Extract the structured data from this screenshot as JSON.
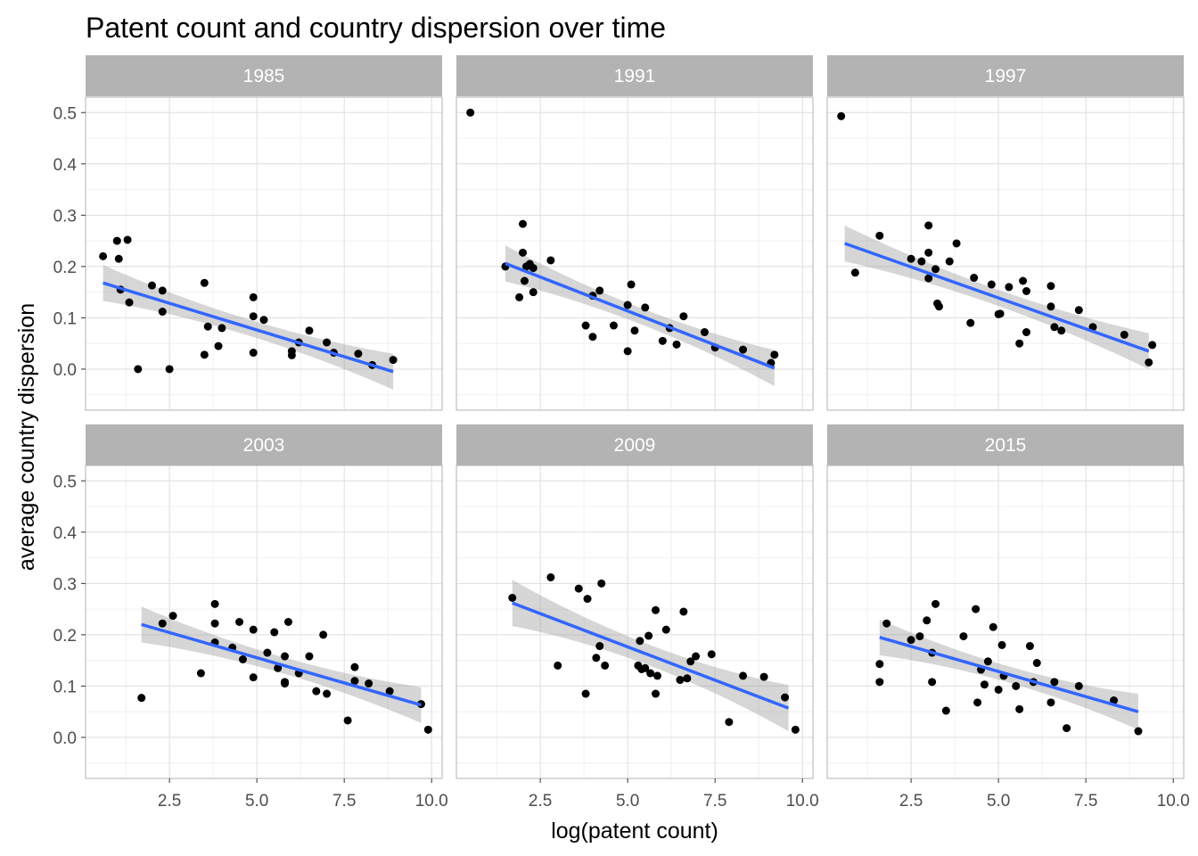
{
  "chart_data": {
    "type": "scatter",
    "title": "Patent count and country dispersion over time",
    "xlabel": "log(patent count)",
    "ylabel": "average country dispersion",
    "xlim": [
      0.1,
      10.3
    ],
    "ylim": [
      -0.08,
      0.53
    ],
    "x_ticks": [
      "2.5",
      "5.0",
      "7.5",
      "10.0"
    ],
    "y_ticks": [
      "0.0",
      "0.1",
      "0.2",
      "0.3",
      "0.4",
      "0.5"
    ],
    "grid": true,
    "colors": {
      "points": "#000000",
      "fit_line": "#3366FF",
      "band": "#999999",
      "strip": "#b3b3b3"
    },
    "panels": [
      {
        "label": "1985",
        "fit": {
          "x0": 0.6,
          "y0": 0.168,
          "x1": 8.9,
          "y1": -0.005,
          "se": 0.035
        },
        "points": [
          [
            0.6,
            0.22
          ],
          [
            1.0,
            0.25
          ],
          [
            1.05,
            0.215
          ],
          [
            1.1,
            0.155
          ],
          [
            1.3,
            0.252
          ],
          [
            1.35,
            0.13
          ],
          [
            1.6,
            0.0
          ],
          [
            2.0,
            0.163
          ],
          [
            2.3,
            0.153
          ],
          [
            2.3,
            0.112
          ],
          [
            2.5,
            0.0
          ],
          [
            3.5,
            0.168
          ],
          [
            3.5,
            0.028
          ],
          [
            3.6,
            0.083
          ],
          [
            3.9,
            0.045
          ],
          [
            4.0,
            0.08
          ],
          [
            4.9,
            0.14
          ],
          [
            4.9,
            0.103
          ],
          [
            4.9,
            0.032
          ],
          [
            5.2,
            0.096
          ],
          [
            6.0,
            0.027
          ],
          [
            6.0,
            0.035
          ],
          [
            6.2,
            0.052
          ],
          [
            6.5,
            0.075
          ],
          [
            7.0,
            0.052
          ],
          [
            7.2,
            0.032
          ],
          [
            7.9,
            0.03
          ],
          [
            8.3,
            0.008
          ],
          [
            8.9,
            0.018
          ]
        ]
      },
      {
        "label": "1991",
        "fit": {
          "x0": 1.5,
          "y0": 0.206,
          "x1": 9.2,
          "y1": 0.002,
          "se": 0.035
        },
        "points": [
          [
            0.5,
            0.5
          ],
          [
            1.5,
            0.2
          ],
          [
            1.9,
            0.14
          ],
          [
            2.0,
            0.283
          ],
          [
            2.0,
            0.227
          ],
          [
            2.05,
            0.172
          ],
          [
            2.1,
            0.2
          ],
          [
            2.2,
            0.205
          ],
          [
            2.3,
            0.197
          ],
          [
            2.3,
            0.15
          ],
          [
            2.8,
            0.212
          ],
          [
            3.8,
            0.085
          ],
          [
            4.0,
            0.143
          ],
          [
            4.0,
            0.063
          ],
          [
            4.2,
            0.153
          ],
          [
            4.6,
            0.085
          ],
          [
            5.0,
            0.125
          ],
          [
            5.0,
            0.035
          ],
          [
            5.1,
            0.165
          ],
          [
            5.2,
            0.075
          ],
          [
            5.5,
            0.12
          ],
          [
            6.0,
            0.055
          ],
          [
            6.2,
            0.08
          ],
          [
            6.4,
            0.048
          ],
          [
            6.6,
            0.103
          ],
          [
            7.2,
            0.072
          ],
          [
            7.5,
            0.042
          ],
          [
            8.3,
            0.038
          ],
          [
            9.1,
            0.012
          ],
          [
            9.2,
            0.028
          ]
        ]
      },
      {
        "label": "1997",
        "fit": {
          "x0": 0.6,
          "y0": 0.245,
          "x1": 9.3,
          "y1": 0.035,
          "se": 0.035
        },
        "points": [
          [
            0.5,
            0.493
          ],
          [
            0.9,
            0.188
          ],
          [
            1.6,
            0.26
          ],
          [
            2.5,
            0.215
          ],
          [
            2.8,
            0.21
          ],
          [
            3.0,
            0.28
          ],
          [
            3.0,
            0.227
          ],
          [
            3.0,
            0.177
          ],
          [
            3.2,
            0.195
          ],
          [
            3.25,
            0.128
          ],
          [
            3.3,
            0.122
          ],
          [
            3.6,
            0.21
          ],
          [
            3.8,
            0.245
          ],
          [
            4.2,
            0.09
          ],
          [
            4.3,
            0.178
          ],
          [
            4.8,
            0.165
          ],
          [
            5.0,
            0.107
          ],
          [
            5.05,
            0.108
          ],
          [
            5.3,
            0.16
          ],
          [
            5.6,
            0.05
          ],
          [
            5.7,
            0.172
          ],
          [
            5.8,
            0.072
          ],
          [
            5.8,
            0.152
          ],
          [
            6.5,
            0.162
          ],
          [
            6.5,
            0.122
          ],
          [
            6.6,
            0.082
          ],
          [
            6.8,
            0.075
          ],
          [
            7.3,
            0.115
          ],
          [
            7.7,
            0.082
          ],
          [
            8.6,
            0.067
          ],
          [
            9.3,
            0.013
          ],
          [
            9.4,
            0.047
          ]
        ]
      },
      {
        "label": "2003",
        "fit": {
          "x0": 1.7,
          "y0": 0.22,
          "x1": 9.7,
          "y1": 0.063,
          "se": 0.035
        },
        "points": [
          [
            1.7,
            0.077
          ],
          [
            2.3,
            0.222
          ],
          [
            2.6,
            0.237
          ],
          [
            3.4,
            0.125
          ],
          [
            3.8,
            0.26
          ],
          [
            3.8,
            0.222
          ],
          [
            3.8,
            0.185
          ],
          [
            4.3,
            0.175
          ],
          [
            4.5,
            0.225
          ],
          [
            4.6,
            0.152
          ],
          [
            4.9,
            0.21
          ],
          [
            4.9,
            0.117
          ],
          [
            5.3,
            0.165
          ],
          [
            5.5,
            0.205
          ],
          [
            5.6,
            0.135
          ],
          [
            5.8,
            0.158
          ],
          [
            5.8,
            0.108
          ],
          [
            5.8,
            0.105
          ],
          [
            5.9,
            0.225
          ],
          [
            6.2,
            0.125
          ],
          [
            6.5,
            0.158
          ],
          [
            6.7,
            0.09
          ],
          [
            6.9,
            0.2
          ],
          [
            7.0,
            0.085
          ],
          [
            7.6,
            0.033
          ],
          [
            7.8,
            0.137
          ],
          [
            7.8,
            0.11
          ],
          [
            8.2,
            0.105
          ],
          [
            8.8,
            0.09
          ],
          [
            9.7,
            0.065
          ],
          [
            9.9,
            0.015
          ]
        ]
      },
      {
        "label": "2009",
        "fit": {
          "x0": 1.7,
          "y0": 0.262,
          "x1": 9.6,
          "y1": 0.057,
          "se": 0.045
        },
        "points": [
          [
            1.7,
            0.272
          ],
          [
            2.8,
            0.312
          ],
          [
            3.0,
            0.14
          ],
          [
            3.6,
            0.29
          ],
          [
            3.8,
            0.085
          ],
          [
            3.85,
            0.27
          ],
          [
            4.1,
            0.155
          ],
          [
            4.2,
            0.178
          ],
          [
            4.25,
            0.3
          ],
          [
            4.35,
            0.14
          ],
          [
            5.3,
            0.14
          ],
          [
            5.35,
            0.188
          ],
          [
            5.4,
            0.133
          ],
          [
            5.5,
            0.135
          ],
          [
            5.6,
            0.198
          ],
          [
            5.65,
            0.125
          ],
          [
            5.8,
            0.248
          ],
          [
            5.8,
            0.085
          ],
          [
            5.85,
            0.12
          ],
          [
            6.1,
            0.21
          ],
          [
            6.5,
            0.112
          ],
          [
            6.6,
            0.245
          ],
          [
            6.7,
            0.115
          ],
          [
            6.8,
            0.148
          ],
          [
            6.95,
            0.158
          ],
          [
            7.4,
            0.162
          ],
          [
            7.9,
            0.03
          ],
          [
            8.3,
            0.12
          ],
          [
            8.9,
            0.118
          ],
          [
            9.5,
            0.078
          ],
          [
            9.8,
            0.015
          ]
        ]
      },
      {
        "label": "2015",
        "fit": {
          "x0": 1.6,
          "y0": 0.195,
          "x1": 9.0,
          "y1": 0.05,
          "se": 0.035
        },
        "points": [
          [
            1.6,
            0.143
          ],
          [
            1.6,
            0.108
          ],
          [
            1.8,
            0.222
          ],
          [
            2.5,
            0.19
          ],
          [
            2.75,
            0.197
          ],
          [
            2.95,
            0.228
          ],
          [
            3.1,
            0.165
          ],
          [
            3.1,
            0.108
          ],
          [
            3.2,
            0.26
          ],
          [
            3.5,
            0.052
          ],
          [
            4.0,
            0.197
          ],
          [
            4.35,
            0.25
          ],
          [
            4.4,
            0.068
          ],
          [
            4.5,
            0.132
          ],
          [
            4.6,
            0.103
          ],
          [
            4.7,
            0.148
          ],
          [
            4.85,
            0.215
          ],
          [
            5.0,
            0.093
          ],
          [
            5.1,
            0.18
          ],
          [
            5.15,
            0.12
          ],
          [
            5.5,
            0.1
          ],
          [
            5.6,
            0.055
          ],
          [
            5.9,
            0.178
          ],
          [
            6.0,
            0.108
          ],
          [
            6.1,
            0.145
          ],
          [
            6.5,
            0.068
          ],
          [
            6.6,
            0.108
          ],
          [
            6.95,
            0.018
          ],
          [
            7.3,
            0.1
          ],
          [
            8.3,
            0.072
          ],
          [
            9.0,
            0.012
          ]
        ]
      }
    ]
  }
}
